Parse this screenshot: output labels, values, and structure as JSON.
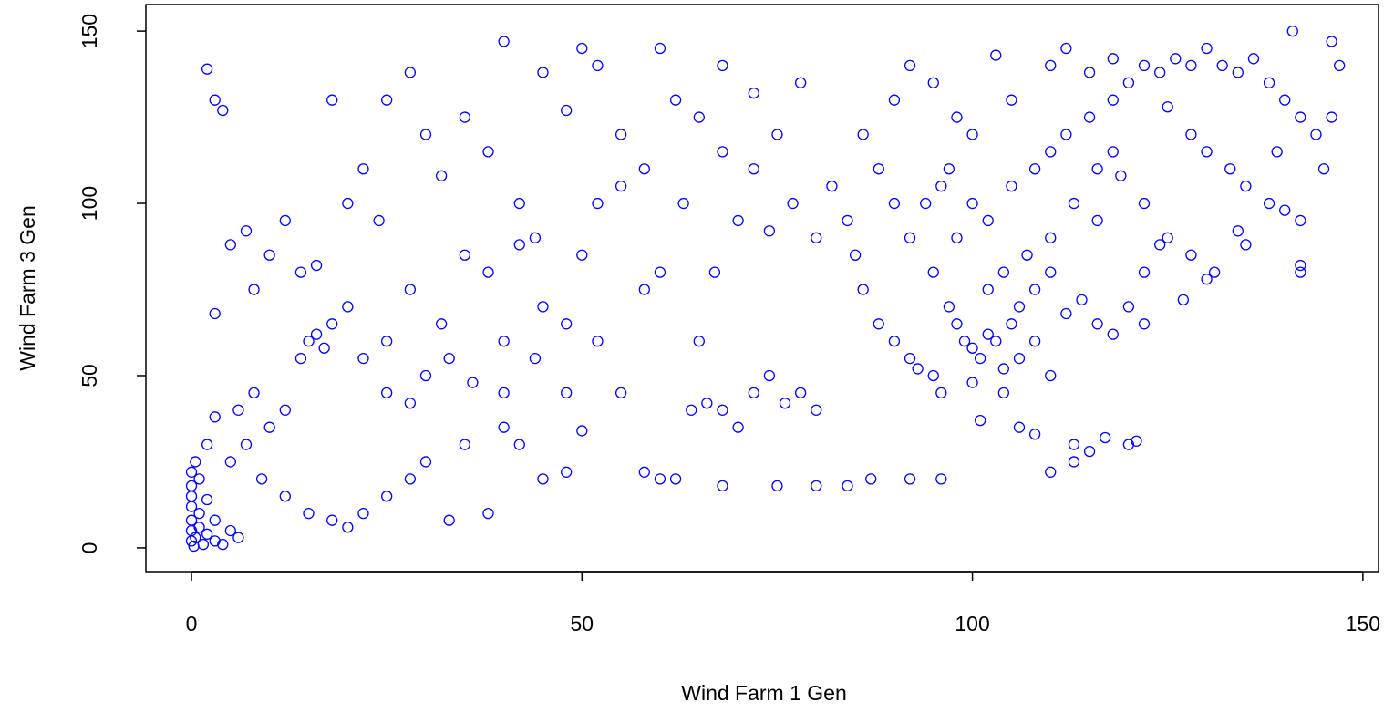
{
  "chart_data": {
    "type": "scatter",
    "xlabel": "Wind Farm 1 Gen",
    "ylabel": "Wind Farm 3 Gen",
    "color": "#0000ff",
    "xlim": [
      -5.84,
      152.0
    ],
    "ylim": [
      -6.9,
      157.7
    ],
    "xticks": [
      0,
      50,
      100,
      150
    ],
    "yticks": [
      0,
      50,
      100,
      150
    ],
    "x": [
      0,
      0,
      0,
      0,
      0,
      0,
      0,
      0.5,
      1,
      1,
      1.5,
      2,
      2,
      3,
      3,
      4,
      5,
      6,
      0.3,
      1,
      0.5,
      2,
      3,
      5,
      6,
      7,
      8,
      9,
      10,
      12,
      14,
      15,
      16,
      17,
      18,
      12,
      15,
      18,
      20,
      22,
      25,
      28,
      30,
      33,
      35,
      38,
      40,
      42,
      45,
      48,
      50,
      3,
      5,
      7,
      10,
      12,
      8,
      14,
      16,
      20,
      22,
      24,
      25,
      28,
      30,
      32,
      35,
      38,
      40,
      42,
      44,
      45,
      48,
      50,
      52,
      55,
      58,
      60,
      62,
      2,
      3,
      4,
      18,
      20,
      22,
      25,
      28,
      30,
      32,
      35,
      38,
      40,
      42,
      45,
      48,
      50,
      52,
      55,
      58,
      60,
      25,
      28,
      33,
      36,
      40,
      44,
      48,
      52,
      55,
      58,
      60,
      62,
      64,
      66,
      68,
      70,
      72,
      74,
      76,
      78,
      80,
      65,
      67,
      70,
      72,
      75,
      78,
      80,
      82,
      85,
      68,
      72,
      65,
      63,
      68,
      74,
      77,
      84,
      86,
      88,
      90,
      92,
      95,
      87,
      92,
      96,
      84,
      75,
      80,
      68,
      95,
      97,
      99,
      100,
      101,
      102,
      103,
      104,
      105,
      106,
      108,
      110,
      112,
      114,
      116,
      118,
      120,
      122,
      98,
      100,
      102,
      105,
      108,
      110,
      112,
      115,
      118,
      120,
      122,
      124,
      126,
      128,
      130,
      132,
      134,
      136,
      138,
      140,
      142,
      144,
      146,
      147,
      146,
      141,
      110,
      112,
      115,
      118,
      125,
      128,
      130,
      133,
      135,
      138,
      140,
      142,
      125,
      128,
      131,
      134,
      122,
      119,
      116,
      113,
      110,
      107,
      104,
      102,
      92,
      90,
      88,
      86,
      90,
      92,
      95,
      98,
      105,
      103,
      100,
      97,
      94,
      96,
      113,
      115,
      117,
      120,
      121,
      106,
      108,
      110,
      113,
      101,
      122,
      124,
      127,
      130,
      142,
      142,
      135,
      145,
      139,
      116,
      118,
      106,
      108,
      104,
      100,
      96,
      93,
      98,
      110
    ],
    "values": [
      2,
      5,
      8,
      12,
      15,
      18,
      22,
      3,
      6,
      10,
      1,
      4,
      14,
      2,
      8,
      1,
      5,
      3,
      0.5,
      20,
      25,
      30,
      38,
      25,
      40,
      30,
      45,
      20,
      35,
      40,
      55,
      60,
      62,
      58,
      65,
      15,
      10,
      8,
      6,
      10,
      15,
      20,
      25,
      8,
      30,
      10,
      35,
      30,
      20,
      22,
      34,
      68,
      88,
      92,
      85,
      95,
      75,
      80,
      82,
      100,
      110,
      95,
      130,
      138,
      120,
      108,
      125,
      115,
      147,
      100,
      90,
      138,
      127,
      145,
      140,
      120,
      110,
      145,
      130,
      139,
      130,
      127,
      130,
      70,
      55,
      60,
      75,
      50,
      65,
      85,
      80,
      60,
      88,
      70,
      65,
      85,
      100,
      105,
      75,
      80,
      45,
      42,
      55,
      48,
      45,
      55,
      45,
      60,
      45,
      22,
      20,
      20,
      40,
      42,
      40,
      35,
      45,
      50,
      42,
      45,
      40,
      60,
      80,
      95,
      110,
      120,
      135,
      90,
      105,
      85,
      140,
      132,
      125,
      100,
      115,
      92,
      100,
      95,
      75,
      65,
      60,
      55,
      50,
      20,
      20,
      20,
      18,
      18,
      18,
      18,
      80,
      70,
      60,
      58,
      55,
      62,
      60,
      52,
      65,
      70,
      75,
      80,
      68,
      72,
      65,
      62,
      70,
      65,
      90,
      100,
      95,
      105,
      110,
      115,
      120,
      125,
      130,
      135,
      140,
      138,
      142,
      140,
      145,
      140,
      138,
      142,
      135,
      130,
      125,
      120,
      125,
      140,
      147,
      150,
      140,
      145,
      138,
      142,
      128,
      120,
      115,
      110,
      105,
      100,
      98,
      95,
      90,
      85,
      80,
      92,
      100,
      108,
      95,
      100,
      90,
      85,
      80,
      75,
      90,
      100,
      110,
      120,
      130,
      140,
      135,
      125,
      130,
      143,
      120,
      110,
      100,
      105,
      30,
      28,
      32,
      30,
      31,
      35,
      33,
      22,
      25,
      37,
      80,
      88,
      72,
      78,
      82,
      80,
      88,
      110,
      115,
      110,
      115,
      55,
      60,
      45,
      48,
      45,
      52,
      65,
      50
    ]
  }
}
